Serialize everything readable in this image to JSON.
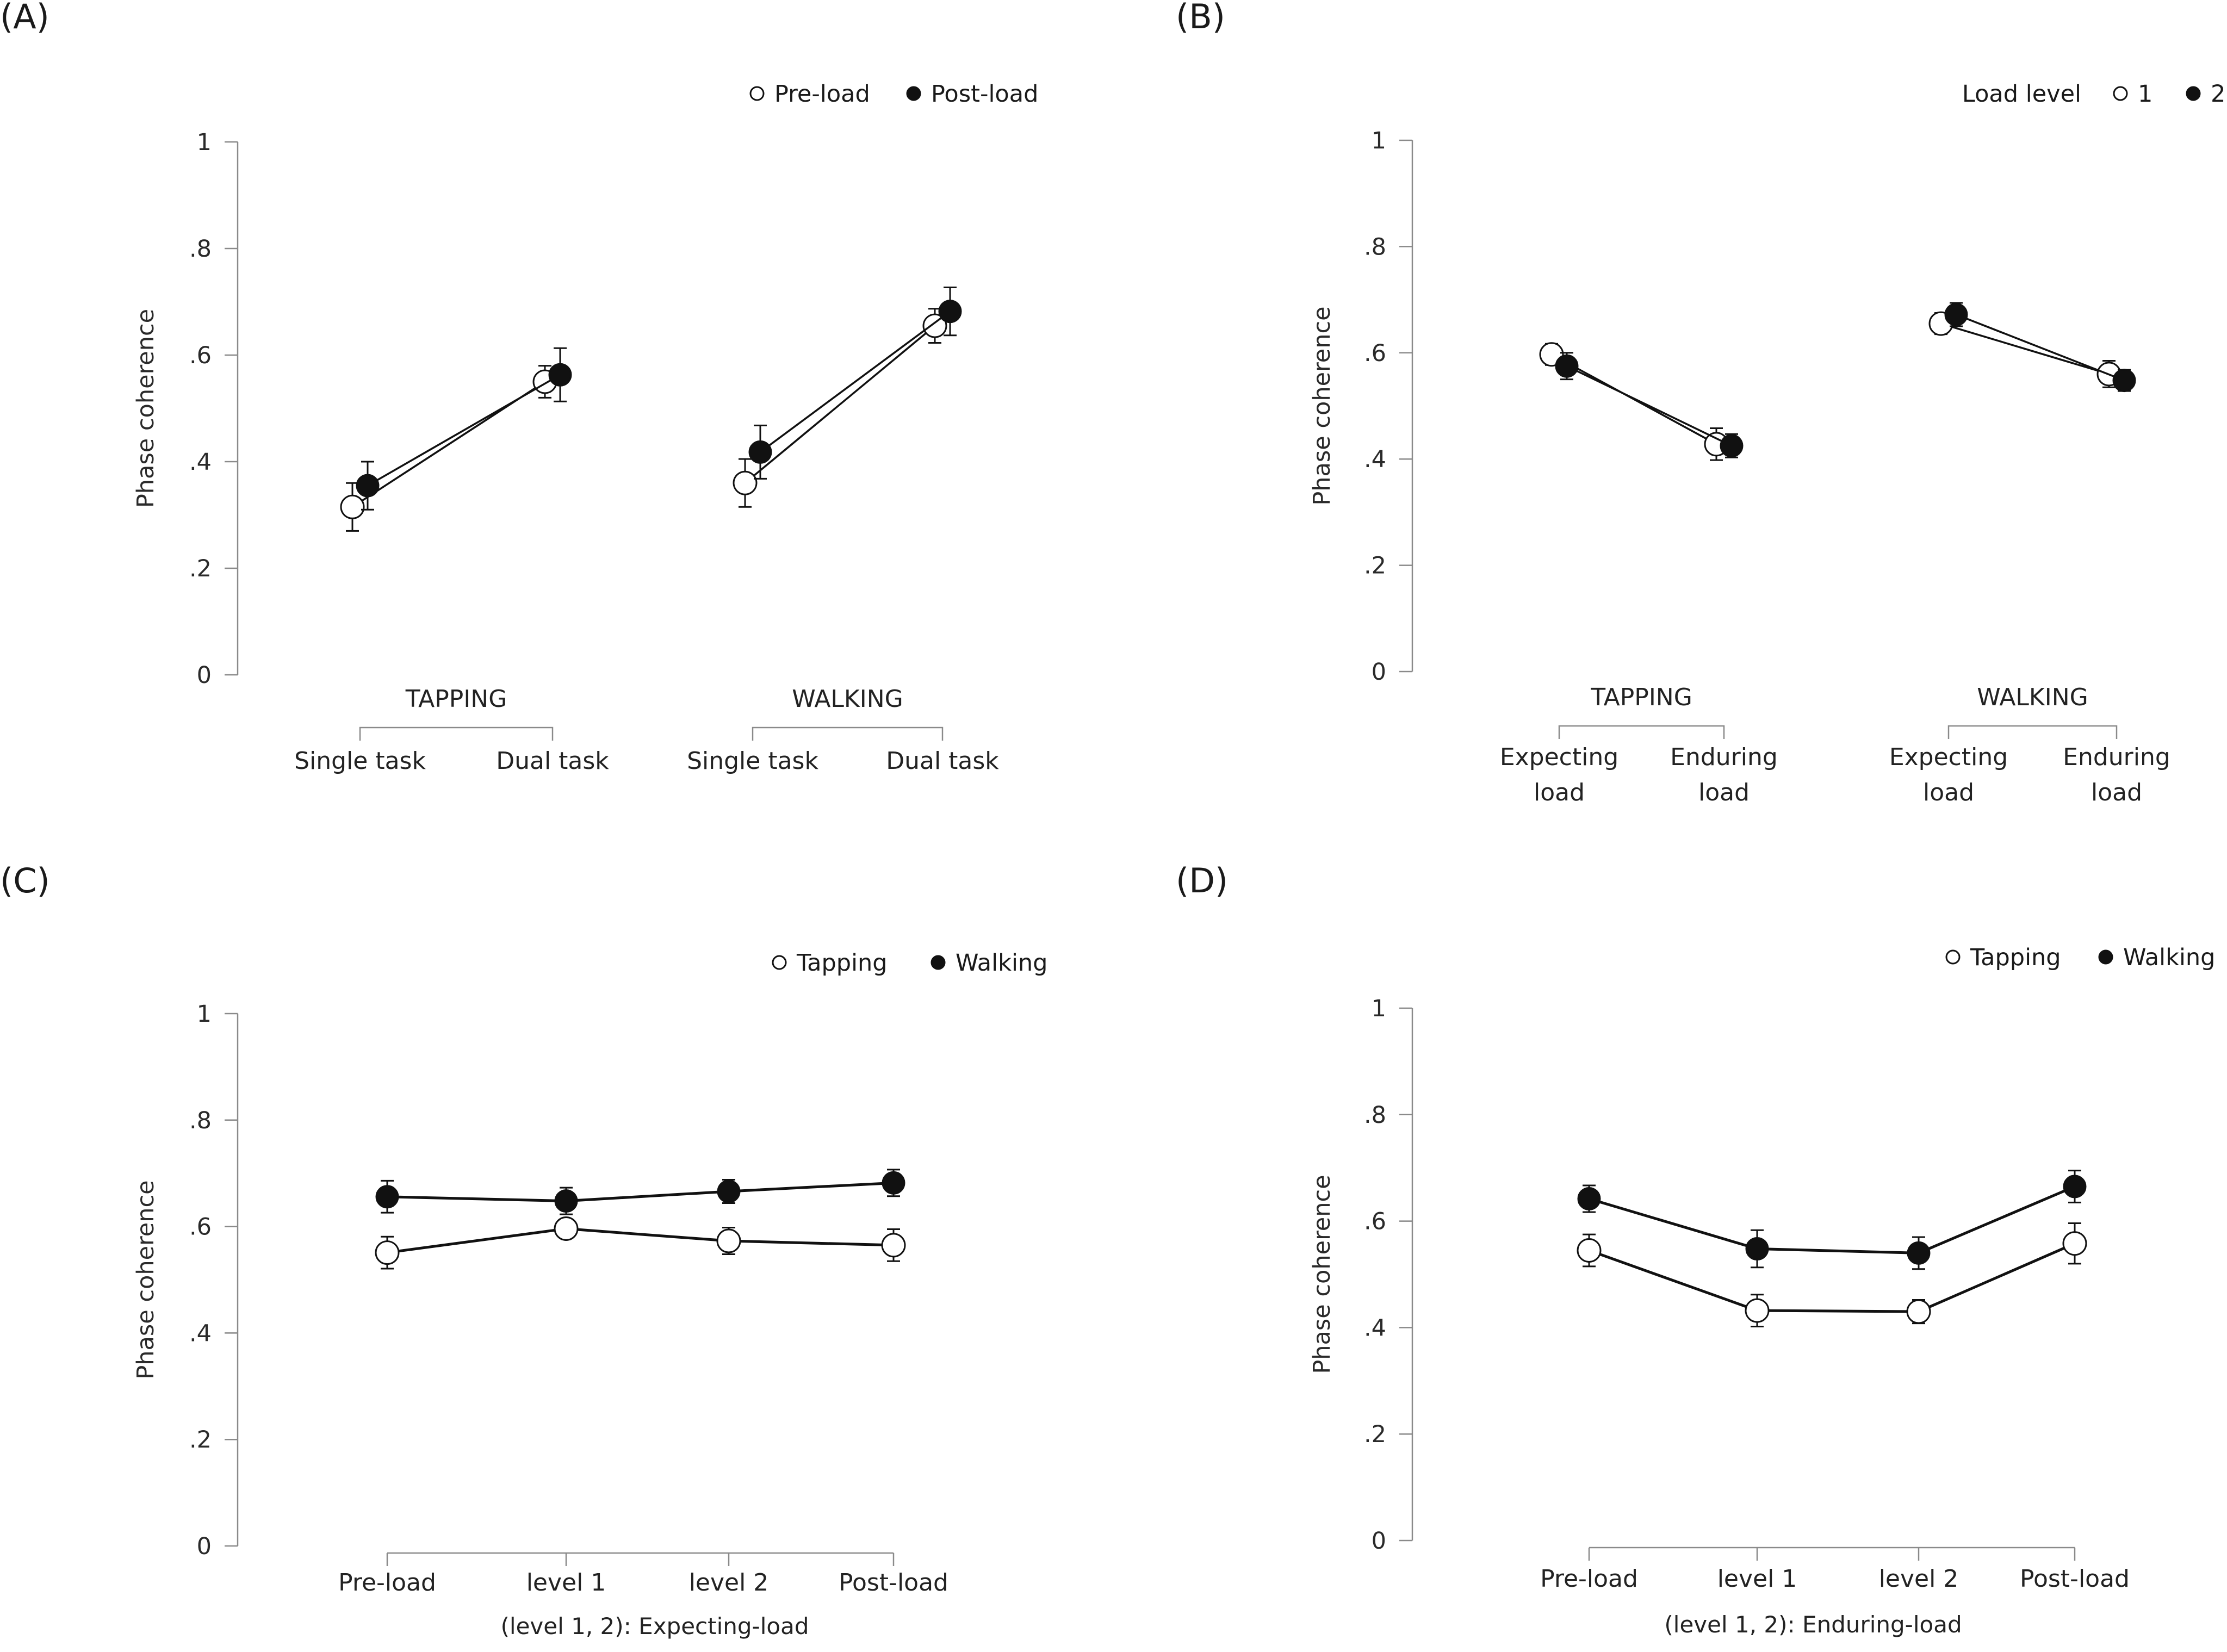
{
  "chart_data": [
    {
      "panel": "(A)",
      "type": "line",
      "ylabel": "Phase coherence",
      "ylim": [
        0,
        1
      ],
      "yticks": [
        "0",
        ".2",
        ".4",
        ".6",
        ".8",
        "1"
      ],
      "groups": [
        {
          "label": "TAPPING",
          "categories": [
            "Single task",
            "Dual task"
          ]
        },
        {
          "label": "WALKING",
          "categories": [
            "Single task",
            "Dual task"
          ]
        }
      ],
      "legend_title": "",
      "series": [
        {
          "name": "Pre-load",
          "marker": "open",
          "groups": [
            {
              "values": [
                0.315,
                0.55
              ],
              "errors": [
                0.045,
                0.03
              ]
            },
            {
              "values": [
                0.36,
                0.655
              ],
              "errors": [
                0.045,
                0.032
              ]
            }
          ]
        },
        {
          "name": "Post-load",
          "marker": "filled",
          "groups": [
            {
              "values": [
                0.355,
                0.563
              ],
              "errors": [
                0.045,
                0.05
              ]
            },
            {
              "values": [
                0.418,
                0.682
              ],
              "errors": [
                0.05,
                0.045
              ]
            }
          ]
        }
      ]
    },
    {
      "panel": "(B)",
      "type": "line",
      "ylabel": "Phase coherence",
      "ylim": [
        0,
        1
      ],
      "yticks": [
        "0",
        ".2",
        ".4",
        ".6",
        ".8",
        "1"
      ],
      "groups": [
        {
          "label": "TAPPING",
          "categories": [
            "Expecting\nload",
            "Enduring\nload"
          ]
        },
        {
          "label": "WALKING",
          "categories": [
            "Expecting\nload",
            "Enduring\nload"
          ]
        }
      ],
      "legend_title": "Load level",
      "series": [
        {
          "name": "1",
          "marker": "open",
          "groups": [
            {
              "values": [
                0.597,
                0.428
              ],
              "errors": [
                0.02,
                0.03
              ]
            },
            {
              "values": [
                0.655,
                0.56
              ],
              "errors": [
                0.02,
                0.025
              ]
            }
          ]
        },
        {
          "name": "2",
          "marker": "filled",
          "groups": [
            {
              "values": [
                0.575,
                0.425
              ],
              "errors": [
                0.025,
                0.022
              ]
            },
            {
              "values": [
                0.672,
                0.548
              ],
              "errors": [
                0.022,
                0.02
              ]
            }
          ]
        }
      ]
    },
    {
      "panel": "(C)",
      "type": "line",
      "ylabel": "Phase coherence",
      "ylim": [
        0,
        1
      ],
      "yticks": [
        "0",
        ".2",
        ".4",
        ".6",
        ".8",
        "1"
      ],
      "categories": [
        "Pre-load",
        "level 1",
        "level 2",
        "Post-load"
      ],
      "note": "(level 1, 2): Expecting-load",
      "legend_title": "",
      "series": [
        {
          "name": "Tapping",
          "marker": "open",
          "values": [
            0.551,
            0.596,
            0.573,
            0.565
          ],
          "errors": [
            0.03,
            0.015,
            0.025,
            0.03
          ]
        },
        {
          "name": "Walking",
          "marker": "filled",
          "values": [
            0.656,
            0.648,
            0.666,
            0.682
          ],
          "errors": [
            0.03,
            0.025,
            0.022,
            0.025
          ]
        }
      ]
    },
    {
      "panel": "(D)",
      "type": "line",
      "ylabel": "Phase coherence",
      "ylim": [
        0,
        1
      ],
      "yticks": [
        "0",
        ".2",
        ".4",
        ".6",
        ".8",
        "1"
      ],
      "categories": [
        "Pre-load",
        "level 1",
        "level 2",
        "Post-load"
      ],
      "note": "(level 1, 2): Enduring-load",
      "legend_title": "",
      "series": [
        {
          "name": "Tapping",
          "marker": "open",
          "values": [
            0.545,
            0.432,
            0.43,
            0.558
          ],
          "errors": [
            0.03,
            0.03,
            0.022,
            0.038
          ]
        },
        {
          "name": "Walking",
          "marker": "filled",
          "values": [
            0.642,
            0.548,
            0.54,
            0.665
          ],
          "errors": [
            0.025,
            0.035,
            0.03,
            0.03
          ]
        }
      ]
    }
  ]
}
